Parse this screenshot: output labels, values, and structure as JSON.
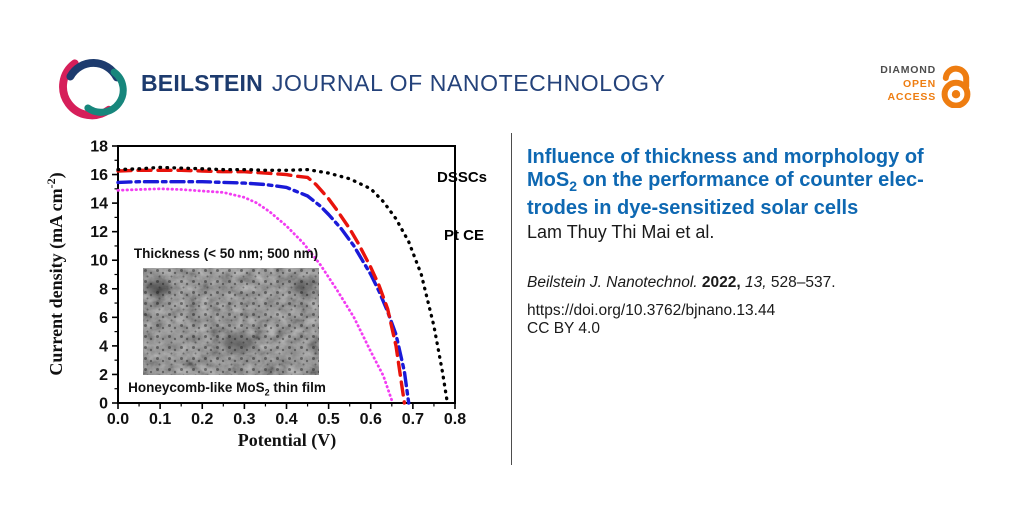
{
  "header": {
    "brand_bold": "BEILSTEIN",
    "brand_light": "JOURNAL OF NANOTECHNOLOGY",
    "oa": {
      "l1": "DIAMOND",
      "l2": "OPEN",
      "l3": "ACCESS"
    },
    "colors": {
      "navy": "#1d3b6e",
      "teal": "#17867c",
      "crimson": "#d61f5a",
      "orange": "#ee7d11"
    }
  },
  "article": {
    "title": {
      "l1": "Influence of thickness and morphology of",
      "l2_mos": "MoS",
      "l2_sub": "2",
      "l2_rest": " on the performance of counter elec-",
      "l3": "trodes in dye-sensitized solar cells"
    },
    "title_color": "#0e68b2",
    "authors": "Lam Thuy Thi Mai et al.",
    "citation": {
      "journal": "Beilstein J. Nanotechnol.",
      "year": "2022,",
      "volume": "13,",
      "pages": "528–537."
    },
    "doi": "https://doi.org/10.3762/bjnano.13.44",
    "license": "CC BY 4.0"
  },
  "inset": {
    "top_label": "Thickness (< 50 nm; 500 nm)",
    "bottom": {
      "pre": "Honeycomb-like MoS",
      "sub": "2",
      "post": " thin film"
    }
  },
  "chart_data": {
    "type": "line",
    "xlabel": "Potential (V)",
    "ylabel": "Current density (mA cm⁻²)",
    "ylabel_parts": {
      "pre": "Current density (mA cm",
      "sup": "-2",
      "post": ")"
    },
    "xlim": [
      0.0,
      0.8
    ],
    "ylim": [
      0,
      18
    ],
    "xticks": [
      "0.0",
      "0.1",
      "0.2",
      "0.3",
      "0.4",
      "0.5",
      "0.6",
      "0.7",
      "0.8"
    ],
    "yticks": [
      "0",
      "2",
      "4",
      "6",
      "8",
      "10",
      "12",
      "14",
      "16",
      "18"
    ],
    "grid": false,
    "legend_position": "none",
    "annotations": {
      "dsscs": "DSSCs",
      "pt_ce": "Pt CE"
    },
    "series": [
      {
        "name": "magenta dotted",
        "color": "#f23cf2",
        "style": "finedot",
        "width": 2.8,
        "x": [
          0,
          0.05,
          0.1,
          0.15,
          0.2,
          0.25,
          0.3,
          0.33,
          0.36,
          0.4,
          0.44,
          0.48,
          0.52,
          0.56,
          0.6,
          0.63,
          0.652
        ],
        "y": [
          14.9,
          14.95,
          15.0,
          14.95,
          14.85,
          14.75,
          14.4,
          14.0,
          13.4,
          12.4,
          11.2,
          9.7,
          7.9,
          6.0,
          3.6,
          1.9,
          0
        ]
      },
      {
        "name": "blue dash-dot",
        "color": "#1a1ad8",
        "style": "dashdot",
        "width": 3.4,
        "x": [
          0,
          0.05,
          0.1,
          0.15,
          0.2,
          0.25,
          0.3,
          0.35,
          0.4,
          0.45,
          0.48,
          0.5,
          0.53,
          0.56,
          0.58,
          0.6,
          0.62,
          0.64,
          0.66,
          0.68,
          0.69
        ],
        "y": [
          15.45,
          15.5,
          15.5,
          15.5,
          15.5,
          15.45,
          15.4,
          15.3,
          15.1,
          14.5,
          13.8,
          13.2,
          12.2,
          11.0,
          10.0,
          9.0,
          7.8,
          6.4,
          4.8,
          2.2,
          0
        ]
      },
      {
        "name": "red dashed",
        "color": "#e8130c",
        "style": "dash",
        "width": 3.4,
        "x": [
          0,
          0.05,
          0.1,
          0.15,
          0.2,
          0.25,
          0.3,
          0.35,
          0.4,
          0.42,
          0.45,
          0.47,
          0.5,
          0.52,
          0.55,
          0.57,
          0.6,
          0.62,
          0.64,
          0.66,
          0.68
        ],
        "y": [
          16.25,
          16.3,
          16.3,
          16.3,
          16.25,
          16.2,
          16.2,
          16.1,
          16.0,
          15.9,
          15.8,
          15.3,
          14.3,
          13.5,
          12.2,
          11.2,
          9.5,
          8.2,
          6.6,
          4.0,
          0
        ]
      },
      {
        "name": "Pt CE",
        "color": "#000000",
        "style": "dot",
        "width": 3.3,
        "x": [
          0,
          0.05,
          0.1,
          0.15,
          0.2,
          0.25,
          0.3,
          0.35,
          0.4,
          0.45,
          0.5,
          0.55,
          0.6,
          0.63,
          0.66,
          0.69,
          0.72,
          0.75,
          0.77,
          0.782
        ],
        "y": [
          16.35,
          16.4,
          16.5,
          16.45,
          16.4,
          16.35,
          16.35,
          16.3,
          16.3,
          16.35,
          16.1,
          15.7,
          15.0,
          14.1,
          12.9,
          11.3,
          9.0,
          5.4,
          2.2,
          0
        ]
      }
    ]
  }
}
